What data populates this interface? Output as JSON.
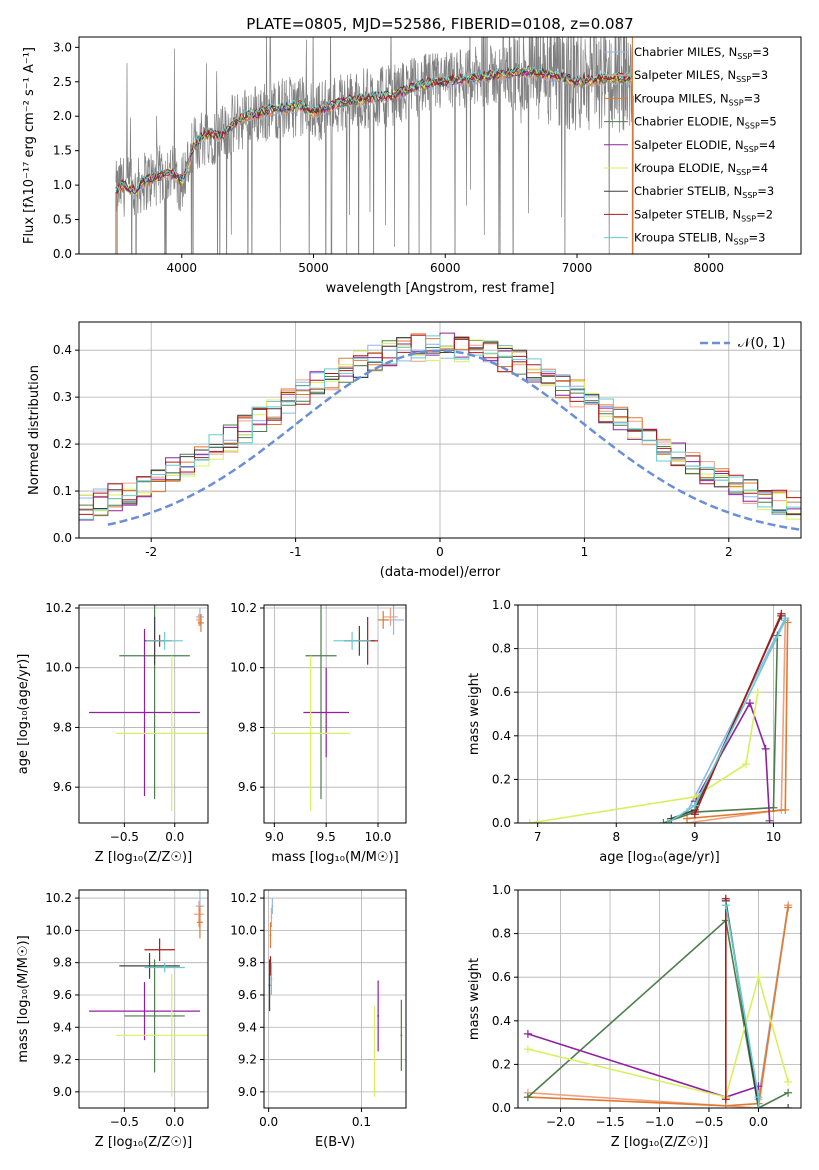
{
  "figure": {
    "title": "PLATE=0805, MJD=52586, FIBERID=0108, z=0.087"
  },
  "colors": {
    "data": "#808080",
    "gaussian": "#6a8fd6",
    "grid": "#b0b0b0",
    "series": [
      "#8fb7e8",
      "#f0a080",
      "#e07a30",
      "#4d7d4d",
      "#9020a0",
      "#d8f060",
      "#404040",
      "#b01818",
      "#66cccc"
    ]
  },
  "legend": {
    "items": [
      {
        "name": "Chabrier MILES",
        "nssp": "3"
      },
      {
        "name": "Salpeter MILES",
        "nssp": "3"
      },
      {
        "name": "Kroupa MILES",
        "nssp": "3"
      },
      {
        "name": "Chabrier ELODIE",
        "nssp": "5"
      },
      {
        "name": "Salpeter ELODIE",
        "nssp": "4"
      },
      {
        "name": "Kroupa ELODIE",
        "nssp": "4"
      },
      {
        "name": "Chabrier STELIB",
        "nssp": "3"
      },
      {
        "name": "Salpeter STELIB",
        "nssp": "2"
      },
      {
        "name": "Kroupa STELIB",
        "nssp": "3"
      }
    ],
    "nssp_prefix": "N",
    "nssp_sub": "SSP"
  },
  "chart_data": [
    {
      "id": "spectrum",
      "type": "line",
      "ylabel": "Flux [fλ10⁻¹⁷ erg cm⁻² s⁻¹ A⁻¹]",
      "xlabel": "wavelength [Angstrom, rest frame]",
      "xlim": [
        3220,
        8700
      ],
      "ylim": [
        0,
        3.15
      ],
      "xticks": [
        4000,
        5000,
        6000,
        7000,
        8000
      ],
      "yticks": [
        0.0,
        0.5,
        1.0,
        1.5,
        2.0,
        2.5,
        3.0
      ],
      "continuum": {
        "x": [
          3500,
          3550,
          3650,
          3700,
          3800,
          3900,
          4000,
          4050,
          4100,
          4200,
          4300,
          4400,
          4500,
          4700,
          4900,
          5000,
          5200,
          5400,
          5600,
          5800,
          6000,
          6200,
          6400,
          6600,
          6800,
          7000,
          7200,
          7400
        ],
        "y": [
          0.9,
          1.0,
          0.9,
          1.05,
          1.1,
          1.2,
          1.05,
          1.3,
          1.6,
          1.75,
          1.7,
          1.9,
          2.0,
          2.1,
          2.15,
          2.05,
          2.2,
          2.25,
          2.3,
          2.45,
          2.5,
          2.55,
          2.6,
          2.65,
          2.6,
          2.5,
          2.55,
          2.55
        ]
      }
    },
    {
      "id": "residuals",
      "type": "bar",
      "ylabel": "Normed distribution",
      "xlabel": "(data-model)/error",
      "xlim": [
        -2.5,
        2.5
      ],
      "ylim": [
        0,
        0.46
      ],
      "xticks": [
        -2,
        -1,
        0,
        1,
        2
      ],
      "yticks": [
        0.0,
        0.1,
        0.2,
        0.3,
        0.4
      ],
      "gaussian_label": "𝒩(0, 1)"
    },
    {
      "id": "age_vs_Z",
      "type": "scatter",
      "ylabel": "age  [log₁₀(age/yr)]",
      "xlabel": "Z [log₁₀(Z/Z☉)]",
      "xlim": [
        -0.95,
        0.33
      ],
      "ylim": [
        9.48,
        10.21
      ],
      "xticks": [
        -0.5,
        0.0
      ],
      "xtick_labels": [
        "−0.5",
        "0.0"
      ],
      "yticks": [
        9.6,
        9.8,
        10.0,
        10.2
      ],
      "ytick_labels": [
        "9.6",
        "9.8",
        "10.0",
        "10.2"
      ],
      "points": [
        {
          "s": 0,
          "x": 0.25,
          "y": 10.17,
          "dx": 0.04,
          "dy": 0.03
        },
        {
          "s": 1,
          "x": 0.24,
          "y": 10.16,
          "dx": 0.03,
          "dy": 0.02
        },
        {
          "s": 2,
          "x": 0.26,
          "y": 10.15,
          "dx": 0.03,
          "dy": 0.03
        },
        {
          "s": 3,
          "x": -0.2,
          "y": 10.04,
          "dx": 0.35,
          "dy": 0.48
        },
        {
          "s": 4,
          "x": -0.3,
          "y": 9.85,
          "dx": 0.55,
          "dy": 0.28
        },
        {
          "s": 5,
          "x": -0.03,
          "y": 9.78,
          "dx": 0.55,
          "dy": 0.26
        },
        {
          "s": 6,
          "x": -0.2,
          "y": 10.09,
          "dx": 0.1,
          "dy": 0.08
        },
        {
          "s": 7,
          "x": -0.15,
          "y": 10.09,
          "dx": 0.12,
          "dy": 0.02
        },
        {
          "s": 8,
          "x": -0.1,
          "y": 10.09,
          "dx": 0.18,
          "dy": 0.03
        }
      ]
    },
    {
      "id": "age_vs_mass",
      "type": "scatter",
      "xlabel": "mass [log₁₀(M/M☉)]",
      "xlim": [
        8.9,
        10.27
      ],
      "ylim": [
        9.48,
        10.21
      ],
      "xticks": [
        9.0,
        9.5,
        10.0
      ],
      "xtick_labels": [
        "9.0",
        "9.5",
        "10.0"
      ],
      "yticks": [
        9.6,
        9.8,
        10.0,
        10.2
      ],
      "ytick_labels": [
        "9.6",
        "9.8",
        "10.0",
        "10.2"
      ],
      "points": [
        {
          "s": 0,
          "x": 10.15,
          "y": 10.16,
          "dx": 0.1,
          "dy": 0.05
        },
        {
          "s": 1,
          "x": 10.12,
          "y": 10.17,
          "dx": 0.07,
          "dy": 0.03
        },
        {
          "s": 2,
          "x": 10.05,
          "y": 10.16,
          "dx": 0.05,
          "dy": 0.03
        },
        {
          "s": 3,
          "x": 9.45,
          "y": 10.04,
          "dx": 0.15,
          "dy": 0.48
        },
        {
          "s": 4,
          "x": 9.5,
          "y": 9.85,
          "dx": 0.22,
          "dy": 0.15
        },
        {
          "s": 5,
          "x": 9.35,
          "y": 9.78,
          "dx": 0.38,
          "dy": 0.26
        },
        {
          "s": 6,
          "x": 9.82,
          "y": 10.09,
          "dx": 0.15,
          "dy": 0.05
        },
        {
          "s": 7,
          "x": 9.9,
          "y": 10.09,
          "dx": 0.1,
          "dy": 0.08
        },
        {
          "s": 8,
          "x": 9.75,
          "y": 10.09,
          "dx": 0.18,
          "dy": 0.03
        }
      ]
    },
    {
      "id": "weight_vs_age",
      "type": "line",
      "ylabel": "mass weight",
      "xlabel": "age  [log₁₀(age/yr)]",
      "xlim": [
        6.75,
        10.35
      ],
      "ylim": [
        0,
        1
      ],
      "xticks": [
        7,
        8,
        9,
        10
      ],
      "xtick_labels": [
        "7",
        "8",
        "9",
        "10"
      ],
      "yticks": [
        0.0,
        0.2,
        0.4,
        0.6,
        0.8,
        1.0
      ],
      "ytick_labels": [
        "0.0",
        "0.2",
        "0.4",
        "0.6",
        "0.8",
        "1.0"
      ],
      "series": [
        {
          "s": 0,
          "x": [
            8.9,
            10.15
          ],
          "y": [
            0.05,
            0.94
          ]
        },
        {
          "s": 1,
          "x": [
            8.9,
            10.1,
            10.15
          ],
          "y": [
            0.0,
            0.06,
            0.93
          ]
        },
        {
          "s": 2,
          "x": [
            8.9,
            10.15,
            10.18
          ],
          "y": [
            0.02,
            0.06,
            0.92
          ]
        },
        {
          "s": 3,
          "x": [
            8.6,
            9.0,
            10.0,
            10.05
          ],
          "y": [
            0.0,
            0.05,
            0.07,
            0.86
          ]
        },
        {
          "s": 4,
          "x": [
            9.0,
            9.7,
            9.9,
            9.95
          ],
          "y": [
            0.1,
            0.55,
            0.34,
            0.01
          ]
        },
        {
          "s": 5,
          "x": [
            6.9,
            9.0,
            9.65,
            9.8
          ],
          "y": [
            0.0,
            0.12,
            0.27,
            0.6
          ]
        },
        {
          "s": 6,
          "x": [
            8.7,
            9.0,
            10.1
          ],
          "y": [
            0.02,
            0.06,
            0.95
          ]
        },
        {
          "s": 7,
          "x": [
            9.0,
            10.1
          ],
          "y": [
            0.04,
            0.96
          ]
        },
        {
          "s": 8,
          "x": [
            8.65,
            9.0,
            10.15
          ],
          "y": [
            0.0,
            0.08,
            0.93
          ]
        }
      ]
    },
    {
      "id": "mass_vs_Z",
      "type": "scatter",
      "ylabel": "mass [log₁₀(M/M☉)]",
      "xlabel": "Z [log₁₀(Z/Z☉)]",
      "xlim": [
        -0.95,
        0.33
      ],
      "ylim": [
        8.9,
        10.25
      ],
      "xticks": [
        -0.5,
        0.0
      ],
      "xtick_labels": [
        "−0.5",
        "0.0"
      ],
      "yticks": [
        9.0,
        9.2,
        9.4,
        9.6,
        9.8,
        10.0,
        10.2
      ],
      "ytick_labels": [
        "9.0",
        "9.2",
        "9.4",
        "9.6",
        "9.8",
        "10.0",
        "10.2"
      ],
      "points": [
        {
          "s": 0,
          "x": 0.25,
          "y": 10.15,
          "dx": 0.04,
          "dy": 0.1
        },
        {
          "s": 1,
          "x": 0.24,
          "y": 10.1,
          "dx": 0.05,
          "dy": 0.08
        },
        {
          "s": 2,
          "x": 0.25,
          "y": 10.05,
          "dx": 0.03,
          "dy": 0.1
        },
        {
          "s": 3,
          "x": -0.2,
          "y": 9.47,
          "dx": 0.3,
          "dy": 0.35
        },
        {
          "s": 4,
          "x": -0.3,
          "y": 9.5,
          "dx": 0.55,
          "dy": 0.18
        },
        {
          "s": 5,
          "x": -0.03,
          "y": 9.35,
          "dx": 0.55,
          "dy": 0.38
        },
        {
          "s": 6,
          "x": -0.25,
          "y": 9.78,
          "dx": 0.3,
          "dy": 0.08
        },
        {
          "s": 7,
          "x": -0.15,
          "y": 9.88,
          "dx": 0.15,
          "dy": 0.07
        },
        {
          "s": 8,
          "x": -0.1,
          "y": 9.77,
          "dx": 0.2,
          "dy": 0.03
        }
      ]
    },
    {
      "id": "mass_vs_EBV",
      "type": "scatter",
      "xlabel": "E(B-V)",
      "xlim": [
        -0.005,
        0.148
      ],
      "ylim": [
        8.9,
        10.25
      ],
      "xticks": [
        0.0,
        0.1
      ],
      "xtick_labels": [
        "0.0",
        "0.1"
      ],
      "yticks": [
        9.0,
        9.2,
        9.4,
        9.6,
        9.8,
        10.0,
        10.2
      ],
      "ytick_labels": [
        "9.0",
        "9.2",
        "9.4",
        "9.6",
        "9.8",
        "10.0",
        "10.2"
      ],
      "points": [
        {
          "s": 0,
          "x": 0.004,
          "y": 10.15,
          "dx": 0.001,
          "dy": 0.05
        },
        {
          "s": 1,
          "x": 0.003,
          "y": 10.08,
          "dx": 0.001,
          "dy": 0.06
        },
        {
          "s": 2,
          "x": 0.002,
          "y": 9.97,
          "dx": 0.001,
          "dy": 0.08
        },
        {
          "s": 3,
          "x": 0.143,
          "y": 9.35,
          "dx": 0.001,
          "dy": 0.22
        },
        {
          "s": 4,
          "x": 0.118,
          "y": 9.47,
          "dx": 0.001,
          "dy": 0.22
        },
        {
          "s": 5,
          "x": 0.114,
          "y": 9.25,
          "dx": 0.001,
          "dy": 0.28
        },
        {
          "s": 6,
          "x": 0.001,
          "y": 9.66,
          "dx": 0.001,
          "dy": 0.16
        },
        {
          "s": 7,
          "x": 0.002,
          "y": 9.78,
          "dx": 0.001,
          "dy": 0.06
        },
        {
          "s": 8,
          "x": 0.003,
          "y": 9.7,
          "dx": 0.001,
          "dy": 0.1
        }
      ]
    },
    {
      "id": "weight_vs_Z",
      "type": "line",
      "ylabel": "mass weight",
      "xlabel": "Z [log₁₀(Z/Z☉)]",
      "xlim": [
        -2.43,
        0.43
      ],
      "ylim": [
        0,
        1
      ],
      "xticks": [
        -2.0,
        -1.5,
        -1.0,
        -0.5,
        0.0
      ],
      "xtick_labels": [
        "−2.0",
        "−1.5",
        "−1.0",
        "−0.5",
        "0.0"
      ],
      "yticks": [
        0.0,
        0.2,
        0.4,
        0.6,
        0.8,
        1.0
      ],
      "ytick_labels": [
        "0.0",
        "0.2",
        "0.4",
        "0.6",
        "0.8",
        "1.0"
      ],
      "series": [
        {
          "s": 0,
          "x": [
            -0.33,
            0.0,
            0.3
          ],
          "y": [
            0.95,
            0.04,
            0.93
          ]
        },
        {
          "s": 1,
          "x": [
            -2.33,
            0.0,
            0.3
          ],
          "y": [
            0.07,
            0.0,
            0.93
          ]
        },
        {
          "s": 2,
          "x": [
            -2.33,
            -0.33,
            0.0,
            0.3
          ],
          "y": [
            0.05,
            0.01,
            0.02,
            0.92
          ]
        },
        {
          "s": 3,
          "x": [
            -2.33,
            -0.33,
            0.0,
            0.3
          ],
          "y": [
            0.05,
            0.86,
            0.0,
            0.07
          ]
        },
        {
          "s": 4,
          "x": [
            -2.33,
            -0.33,
            0.0
          ],
          "y": [
            0.34,
            0.05,
            0.1
          ]
        },
        {
          "s": 5,
          "x": [
            -2.33,
            -0.33,
            0.0,
            0.3
          ],
          "y": [
            0.27,
            0.05,
            0.6,
            0.12
          ]
        },
        {
          "s": 6,
          "x": [
            -0.33,
            0.0,
            0.3
          ],
          "y": [
            0.95,
            0.0,
            0.0
          ]
        },
        {
          "s": 7,
          "x": [
            -0.33,
            -0.33
          ],
          "y": [
            0.96,
            0.04
          ]
        },
        {
          "s": 8,
          "x": [
            -0.33,
            0.0,
            0.0
          ],
          "y": [
            0.93,
            0.05,
            0.0
          ]
        }
      ]
    }
  ]
}
